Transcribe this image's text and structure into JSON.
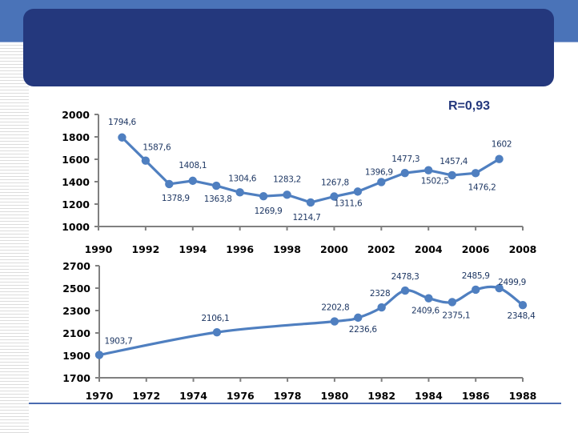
{
  "colors": {
    "header_band": "#4a73b8",
    "title_box": "#24387d",
    "series": "#4f7fc0",
    "data_label": "#1f3864",
    "axis": "#808080",
    "footer_line": "#4a6bb0"
  },
  "annotation": "R=0,93",
  "chart_data": [
    {
      "type": "line",
      "title": "",
      "xlabel": "",
      "ylabel": "",
      "xlim": [
        1990,
        2008
      ],
      "ylim": [
        1000,
        2000
      ],
      "x_ticks": [
        "1990",
        "1992",
        "1994",
        "1996",
        "1998",
        "2000",
        "2002",
        "2004",
        "2006",
        "2008"
      ],
      "y_ticks": [
        "2000",
        "1800",
        "1600",
        "1400",
        "1200",
        "1000"
      ],
      "grid": false,
      "legend": "none",
      "x": [
        1991,
        1992,
        1993,
        1994,
        1995,
        1996,
        1997,
        1998,
        1999,
        2000,
        2001,
        2002,
        2003,
        2004,
        2005,
        2006,
        2007
      ],
      "values": [
        1794.6,
        1587.6,
        1378.9,
        1408.1,
        1363.8,
        1304.6,
        1269.9,
        1283.2,
        1214.7,
        1267.8,
        1311.6,
        1396.9,
        1477.3,
        1502.5,
        1457.4,
        1476.2,
        1602
      ],
      "data_labels": [
        "1794,6",
        "1587,6",
        "1378,9",
        "1408,1",
        "1363,8",
        "1304,6",
        "1269,9",
        "1283,2",
        "1214,7",
        "1267,8",
        "1311,6",
        "1396,9",
        "1477,3",
        "1502,5",
        "1457,4",
        "1476,2",
        "1602"
      ]
    },
    {
      "type": "line",
      "title": "",
      "xlabel": "",
      "ylabel": "",
      "xlim": [
        1970,
        1988
      ],
      "ylim": [
        1700,
        2700
      ],
      "x_ticks": [
        "1970",
        "1972",
        "1974",
        "1976",
        "1978",
        "1980",
        "1982",
        "1984",
        "1986",
        "1988"
      ],
      "y_ticks": [
        "2700",
        "2500",
        "2300",
        "2100",
        "1900",
        "1700"
      ],
      "grid": false,
      "legend": "none",
      "smooth": true,
      "x": [
        1970,
        1975,
        1980,
        1981,
        1982,
        1983,
        1984,
        1985,
        1986,
        1987,
        1988
      ],
      "values": [
        1903.7,
        2106.1,
        2202.8,
        2236.6,
        2328,
        2478.3,
        2409.6,
        2375.1,
        2485.9,
        2499.9,
        2348.4
      ],
      "data_labels": [
        "1903,7",
        "2106,1",
        "2202,8",
        "2236,6",
        "2328",
        "2478,3",
        "2409,6",
        "2375,1",
        "2485,9",
        "2499,9",
        "2348,4"
      ]
    }
  ]
}
